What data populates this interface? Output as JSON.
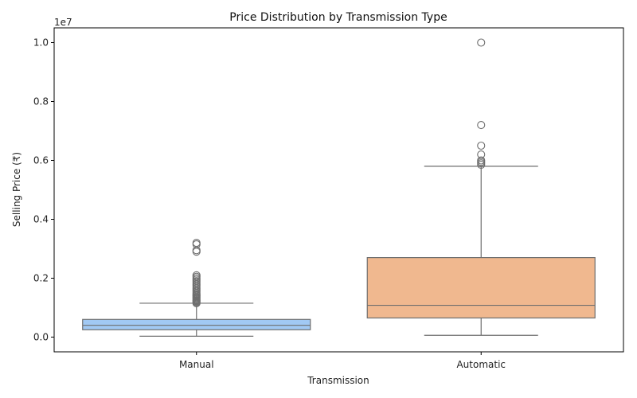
{
  "chart_data": {
    "type": "box",
    "title": "Price Distribution by Transmission Type",
    "xlabel": "Transmission",
    "ylabel": "Selling Price (₹)",
    "y_offset_label": "1e7",
    "y_scale_factor": 10000000,
    "ylim": [
      -500000,
      10500000
    ],
    "yticks": [
      0,
      2000000,
      4000000,
      6000000,
      8000000,
      10000000
    ],
    "ytick_labels": [
      "0.0",
      "0.2",
      "0.4",
      "0.6",
      "0.8",
      "1.0"
    ],
    "grid": false,
    "legend": "none",
    "categories": [
      "Manual",
      "Automatic"
    ],
    "boxes": [
      {
        "category": "Manual",
        "color": "#a1c9f4",
        "whisker_low": 30000,
        "q1": 250000,
        "median": 400000,
        "q3": 600000,
        "whisker_high": 1150000,
        "outliers": [
          1150000,
          1180000,
          1210000,
          1240000,
          1270000,
          1300000,
          1330000,
          1360000,
          1400000,
          1430000,
          1460000,
          1500000,
          1550000,
          1600000,
          1650000,
          1700000,
          1750000,
          1800000,
          1850000,
          1900000,
          1950000,
          2000000,
          2050000,
          2100000,
          2900000,
          2950000,
          3150000,
          3200000
        ]
      },
      {
        "category": "Automatic",
        "color": "#f0b88f",
        "whisker_low": 60000,
        "q1": 650000,
        "median": 1080000,
        "q3": 2700000,
        "whisker_high": 5800000,
        "outliers": [
          5850000,
          5900000,
          5950000,
          6000000,
          6200000,
          6500000,
          7200000,
          10000000
        ]
      }
    ]
  }
}
